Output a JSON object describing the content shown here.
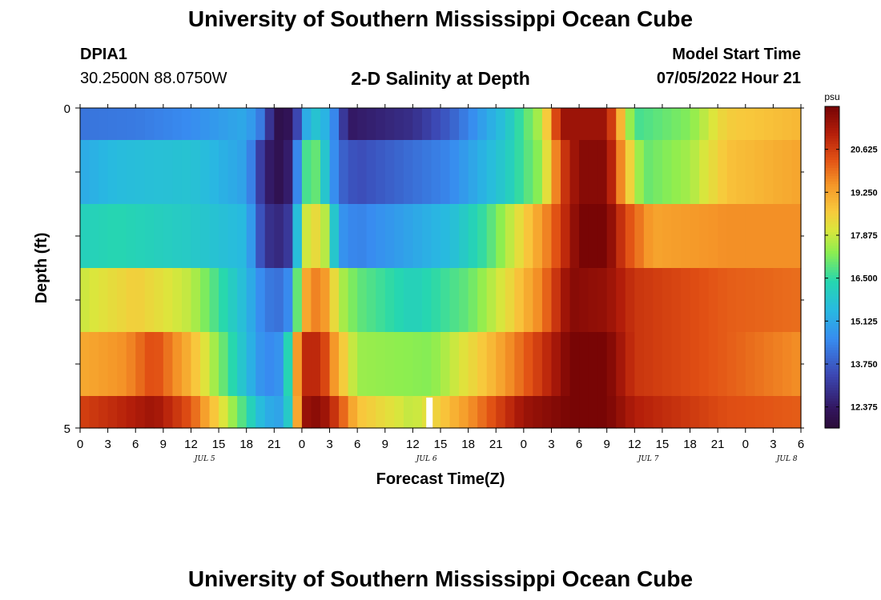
{
  "header": {
    "title": "University of Southern Mississippi Ocean Cube",
    "station_id": "DPIA1",
    "station_coords": "30.2500N  88.0750W",
    "plot_title": "2-D Salinity at Depth",
    "model_start_label": "Model Start Time",
    "model_start_value": "07/05/2022 Hour 21"
  },
  "footer": {
    "title": "University of Southern Mississippi Ocean Cube"
  },
  "chart_data": {
    "type": "heatmap",
    "title": "2-D Salinity at Depth",
    "xlabel": "Forecast Time(Z)",
    "ylabel": "Depth (ft)",
    "x_tick_labels": [
      "0",
      "3",
      "6",
      "9",
      "12",
      "15",
      "18",
      "21",
      "0",
      "3",
      "6",
      "9",
      "12",
      "15",
      "18",
      "21",
      "0",
      "3",
      "6",
      "9",
      "12",
      "15",
      "18",
      "21",
      "0",
      "3",
      "6"
    ],
    "date_labels": [
      {
        "label": "JUL 5",
        "tick_index": 4
      },
      {
        "label": "JUL 6",
        "tick_index": 12
      },
      {
        "label": "JUL 7",
        "tick_index": 20
      },
      {
        "label": "JUL 8",
        "tick_index": 25
      }
    ],
    "y_tick_labels": [
      "0",
      "5"
    ],
    "ylim": [
      0,
      5
    ],
    "colorbar": {
      "unit": "psu",
      "tick_labels": [
        "12.375",
        "13.750",
        "15.125",
        "16.500",
        "17.875",
        "19.250",
        "20.625"
      ],
      "range": [
        11.7,
        22.0
      ]
    },
    "layers": [
      {
        "depth_range": "0-0.5",
        "keyframes": [
          [
            0,
            14.2
          ],
          [
            6,
            14.3
          ],
          [
            12,
            14.6
          ],
          [
            18,
            15.2
          ],
          [
            20,
            14.0
          ],
          [
            21,
            12.0
          ],
          [
            23,
            12.3
          ],
          [
            24,
            14.5
          ],
          [
            25,
            16.0
          ],
          [
            27,
            15.2
          ],
          [
            29,
            12.4
          ],
          [
            36,
            12.9
          ],
          [
            40,
            13.8
          ],
          [
            46,
            15.8
          ],
          [
            50,
            17.8
          ],
          [
            51,
            19.5
          ],
          [
            52,
            21.5
          ],
          [
            57,
            21.5
          ],
          [
            59,
            18.2
          ],
          [
            60,
            16.7
          ],
          [
            66,
            17.3
          ],
          [
            70,
            18.6
          ],
          [
            78,
            19.0
          ]
        ]
      },
      {
        "depth_range": "0.5-1.5",
        "keyframes": [
          [
            0,
            15.2
          ],
          [
            4,
            15.6
          ],
          [
            12,
            15.8
          ],
          [
            18,
            15.0
          ],
          [
            20,
            12.6
          ],
          [
            22,
            12.0
          ],
          [
            23,
            13.0
          ],
          [
            24,
            16.0
          ],
          [
            25,
            17.5
          ],
          [
            26,
            16.5
          ],
          [
            28,
            14.0
          ],
          [
            30,
            13.5
          ],
          [
            40,
            14.5
          ],
          [
            46,
            16.0
          ],
          [
            50,
            17.5
          ],
          [
            52,
            20.5
          ],
          [
            54,
            21.8
          ],
          [
            57,
            21.8
          ],
          [
            59,
            19.0
          ],
          [
            61,
            17.0
          ],
          [
            66,
            17.6
          ],
          [
            70,
            18.8
          ],
          [
            78,
            19.3
          ]
        ]
      },
      {
        "depth_range": "1.5-2.5",
        "keyframes": [
          [
            0,
            16.2
          ],
          [
            4,
            16.4
          ],
          [
            12,
            16.0
          ],
          [
            18,
            15.5
          ],
          [
            20,
            13.0
          ],
          [
            22,
            12.7
          ],
          [
            23,
            13.5
          ],
          [
            24,
            17.8
          ],
          [
            26,
            18.5
          ],
          [
            27,
            17.0
          ],
          [
            28,
            14.8
          ],
          [
            30,
            14.4
          ],
          [
            40,
            15.6
          ],
          [
            44,
            16.7
          ],
          [
            48,
            18.5
          ],
          [
            51,
            20.0
          ],
          [
            54,
            22.0
          ],
          [
            57,
            22.0
          ],
          [
            59,
            20.5
          ],
          [
            62,
            19.3
          ],
          [
            70,
            19.6
          ],
          [
            78,
            19.6
          ]
        ]
      },
      {
        "depth_range": "2.5-3.5",
        "keyframes": [
          [
            0,
            17.9
          ],
          [
            6,
            18.6
          ],
          [
            12,
            17.8
          ],
          [
            18,
            15.5
          ],
          [
            20,
            14.3
          ],
          [
            22,
            14.1
          ],
          [
            23,
            15.0
          ],
          [
            24,
            19.0
          ],
          [
            26,
            20.0
          ],
          [
            28,
            17.8
          ],
          [
            30,
            17.0
          ],
          [
            36,
            16.2
          ],
          [
            42,
            17.0
          ],
          [
            46,
            18.2
          ],
          [
            50,
            19.8
          ],
          [
            53,
            21.8
          ],
          [
            57,
            21.6
          ],
          [
            60,
            20.8
          ],
          [
            70,
            20.2
          ],
          [
            78,
            20.0
          ]
        ]
      },
      {
        "depth_range": "3.5-4.5",
        "keyframes": [
          [
            0,
            19.2
          ],
          [
            5,
            19.6
          ],
          [
            8,
            20.5
          ],
          [
            12,
            19.0
          ],
          [
            18,
            15.6
          ],
          [
            20,
            14.5
          ],
          [
            22,
            14.8
          ],
          [
            24,
            21.0
          ],
          [
            26,
            21.0
          ],
          [
            28,
            19.0
          ],
          [
            30,
            17.5
          ],
          [
            38,
            17.3
          ],
          [
            44,
            18.8
          ],
          [
            50,
            20.8
          ],
          [
            53,
            22.0
          ],
          [
            57,
            22.0
          ],
          [
            60,
            20.8
          ],
          [
            70,
            20.2
          ],
          [
            78,
            19.6
          ]
        ]
      },
      {
        "depth_range": "4.5-5",
        "keyframes": [
          [
            0,
            20.6
          ],
          [
            4,
            21.0
          ],
          [
            8,
            21.5
          ],
          [
            12,
            20.3
          ],
          [
            16,
            17.8
          ],
          [
            20,
            15.3
          ],
          [
            22,
            15.0
          ],
          [
            23,
            17.0
          ],
          [
            24,
            21.5
          ],
          [
            26,
            21.8
          ],
          [
            28,
            20.5
          ],
          [
            30,
            18.8
          ],
          [
            36,
            17.8
          ],
          [
            42,
            19.5
          ],
          [
            48,
            21.5
          ],
          [
            53,
            22.0
          ],
          [
            57,
            22.0
          ],
          [
            60,
            21.2
          ],
          [
            70,
            20.4
          ],
          [
            78,
            20.2
          ]
        ]
      }
    ]
  }
}
